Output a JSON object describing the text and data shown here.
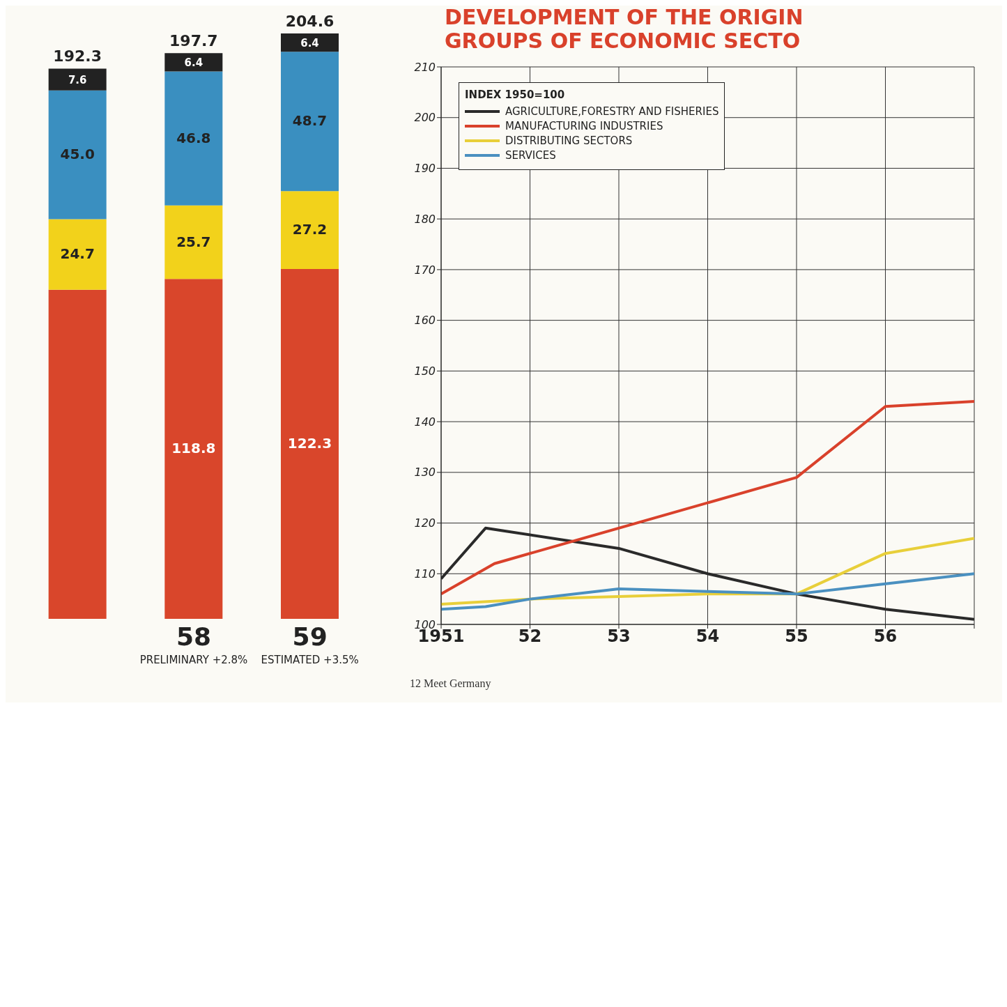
{
  "chart_data": [
    {
      "type": "bar",
      "stacked": true,
      "categories": [
        null,
        "58\nPRELIMINARY +2.8%",
        "59\nESTIMATED +3.5%"
      ],
      "data_labels": false,
      "series": [
        {
          "color": "#d9462b",
          "values": [
            115.0,
            118.8,
            122.3
          ],
          "value_labels": [
            null,
            "118.8",
            "122.3"
          ]
        },
        {
          "color": "#f2d21b",
          "values": [
            24.7,
            25.7,
            27.2
          ],
          "value_labels": [
            "24.7",
            "25.7",
            "27.2"
          ]
        },
        {
          "color": "#3a8fc0",
          "values": [
            45.0,
            46.8,
            48.7
          ],
          "value_labels": [
            "45.0",
            "46.8",
            "48.7"
          ]
        },
        {
          "color": "#222222",
          "values": [
            7.6,
            6.4,
            6.4
          ],
          "value_labels": [
            "7.6",
            "6.4",
            "6.4"
          ]
        }
      ],
      "totals": [
        "192.3",
        "197.7",
        "204.6"
      ]
    },
    {
      "type": "line",
      "title": "DEVELOPMENT OF THE ORIGIN\nGROUPS OF ECONOMIC SECTO",
      "legend_title": "INDEX 1950=100",
      "legend": "top left",
      "grid": true,
      "marker": "none",
      "line_style": "solid",
      "xlim": [
        1951,
        1957
      ],
      "xticks": [
        1951,
        {
          "value": 1952,
          "label": "52"
        },
        {
          "value": 1953,
          "label": "53"
        },
        {
          "value": 1954,
          "label": "54"
        },
        {
          "value": 1955,
          "label": "55"
        },
        {
          "value": 1956,
          "label": "56"
        },
        {
          "value": 1957,
          "label": null
        }
      ],
      "ylim": [
        100,
        210
      ],
      "yticks": [
        100,
        110,
        120,
        130,
        140,
        150,
        160,
        170,
        180,
        190,
        200,
        210
      ],
      "series": [
        {
          "name": "AGRICULTURE,FORESTRY AND FISHERIES",
          "color": "#2a2a2a",
          "x": [
            1951,
            1951.5,
            1953,
            1954,
            1955,
            1956,
            1957
          ],
          "values": [
            109,
            119,
            115,
            110,
            106,
            103,
            101
          ]
        },
        {
          "name": "MANUFACTURING INDUSTRIES",
          "color": "#d9412b",
          "x": [
            1951,
            1951.6,
            1955,
            1956,
            1957
          ],
          "values": [
            106,
            112,
            129,
            143,
            144
          ]
        },
        {
          "name": "DISTRIBUTING SECTORS",
          "color": "#e8cf3a",
          "x": [
            1951,
            1952,
            1953,
            1954,
            1955,
            1956,
            1957
          ],
          "values": [
            104,
            105,
            105.5,
            106,
            106,
            114,
            117
          ]
        },
        {
          "name": "SERVICES",
          "color": "#4a90c0",
          "x": [
            1951,
            1951.5,
            1952,
            1953,
            1954,
            1955,
            1956,
            1957
          ],
          "values": [
            103,
            103.5,
            105,
            107,
            106.5,
            106,
            108,
            110
          ]
        }
      ],
      "annotations": [
        "12 Meet Germany"
      ]
    }
  ]
}
